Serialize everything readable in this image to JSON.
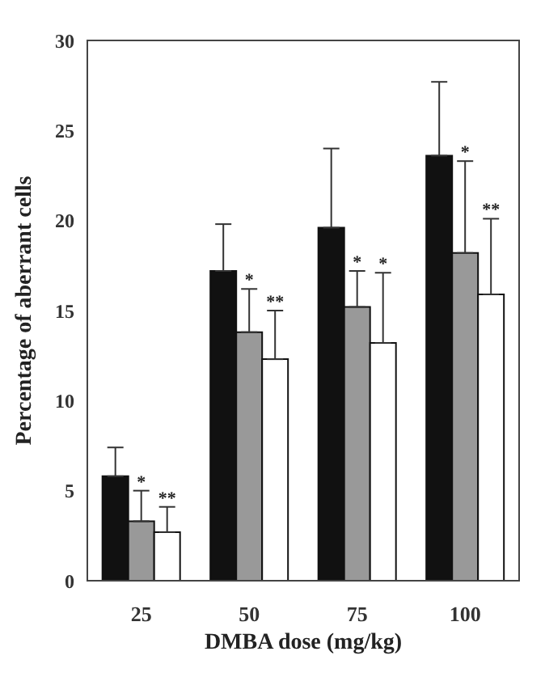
{
  "chart_data": {
    "type": "bar",
    "xlabel": "DMBA dose (mg/kg)",
    "ylabel": "Percentage of aberrant cells",
    "categories": [
      "25",
      "50",
      "75",
      "100"
    ],
    "series": [
      {
        "color": "#111111",
        "values": [
          5.8,
          17.2,
          19.6,
          23.6
        ],
        "errors": [
          [
            5.8,
            7.4
          ],
          [
            17.2,
            19.8
          ],
          [
            19.6,
            24.0
          ],
          [
            23.6,
            27.7
          ]
        ]
      },
      {
        "color": "#999999",
        "values": [
          3.3,
          13.8,
          15.2,
          18.2
        ],
        "errors": [
          [
            3.3,
            5.0
          ],
          [
            13.8,
            16.2
          ],
          [
            15.2,
            17.2
          ],
          [
            18.2,
            23.3
          ]
        ]
      },
      {
        "color": "#ffffff",
        "values": [
          2.7,
          12.3,
          13.2,
          15.9
        ],
        "errors": [
          [
            2.7,
            4.1
          ],
          [
            12.3,
            15.0
          ],
          [
            13.2,
            17.1
          ],
          [
            15.9,
            20.1
          ]
        ]
      }
    ],
    "ylim": [
      0,
      30
    ],
    "yticks": [
      0,
      5,
      10,
      15,
      20,
      25,
      30
    ],
    "grid": false,
    "legend": false,
    "annotations": [
      {
        "text": "*",
        "x": "25",
        "y": 5.0
      },
      {
        "text": "**",
        "x": "25",
        "y": 4.1
      },
      {
        "text": "*",
        "x": "50",
        "y": 16.2
      },
      {
        "text": "**",
        "x": "50",
        "y": 15.0
      },
      {
        "text": "*",
        "x": "75",
        "y": 17.2
      },
      {
        "text": "*",
        "x": "75",
        "y": 17.1
      },
      {
        "text": "*",
        "x": "100",
        "y": 23.3
      },
      {
        "text": "**",
        "x": "100",
        "y": 20.1
      }
    ]
  }
}
